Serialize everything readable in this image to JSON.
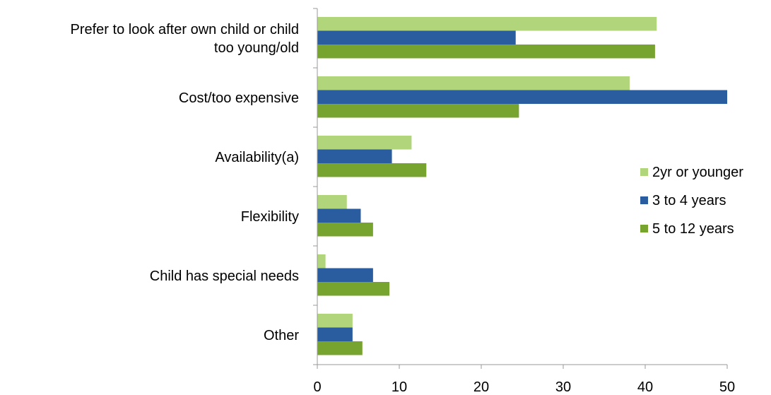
{
  "chart_data": {
    "type": "bar",
    "orientation": "horizontal",
    "categories": [
      [
        "Prefer to look after own child or child",
        "too young/old"
      ],
      [
        "Cost/too expensive"
      ],
      [
        "Availability(a)"
      ],
      [
        "Flexibility"
      ],
      [
        "Child has special needs"
      ],
      [
        "Other"
      ]
    ],
    "series": [
      {
        "name": "2yr or younger",
        "color": "#b0d57a",
        "values": [
          41.4,
          38.1,
          11.5,
          3.6,
          1.0,
          4.3
        ]
      },
      {
        "name": "3 to 4 years",
        "color": "#2a5d9f",
        "values": [
          24.2,
          50.0,
          9.1,
          5.3,
          6.8,
          4.3
        ]
      },
      {
        "name": "5 to 12 years",
        "color": "#77a32f",
        "values": [
          41.2,
          24.6,
          13.3,
          6.8,
          8.8,
          5.5
        ]
      }
    ],
    "xlim": [
      0,
      50
    ],
    "xticks": [
      0,
      10,
      20,
      30,
      40,
      50
    ],
    "title": "",
    "xlabel": "",
    "ylabel": "",
    "grid": false,
    "legend_position": "right"
  }
}
